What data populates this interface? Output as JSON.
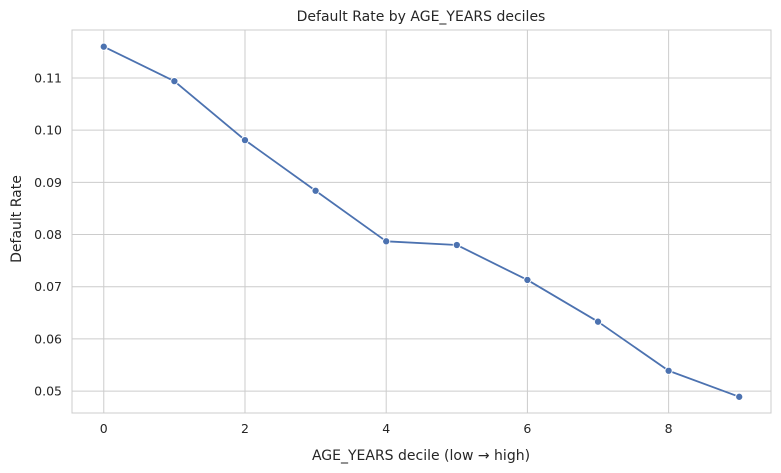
{
  "chart_data": {
    "type": "line",
    "title": "Default Rate by AGE_YEARS deciles",
    "xlabel": "AGE_YEARS decile (low → high)",
    "ylabel": "Default Rate",
    "xlim": [
      -0.45,
      9.45
    ],
    "ylim": [
      0.0458,
      0.1192
    ],
    "xticks": [
      0,
      2,
      4,
      6,
      8
    ],
    "yticks": [
      0.05,
      0.06,
      0.07,
      0.08,
      0.09,
      0.1,
      0.11
    ],
    "xtick_labels": [
      "0",
      "2",
      "4",
      "6",
      "8"
    ],
    "ytick_labels": [
      "0.05",
      "0.06",
      "0.07",
      "0.08",
      "0.09",
      "0.10",
      "0.11"
    ],
    "grid": true,
    "series": [
      {
        "x": [
          0,
          1,
          2,
          3,
          4,
          5,
          6,
          7,
          8,
          9
        ],
        "y": [
          0.116,
          0.1094,
          0.0981,
          0.0884,
          0.0787,
          0.078,
          0.0713,
          0.0633,
          0.0539,
          0.0489
        ],
        "color": "#4c72b0",
        "marker": "circle"
      }
    ]
  }
}
